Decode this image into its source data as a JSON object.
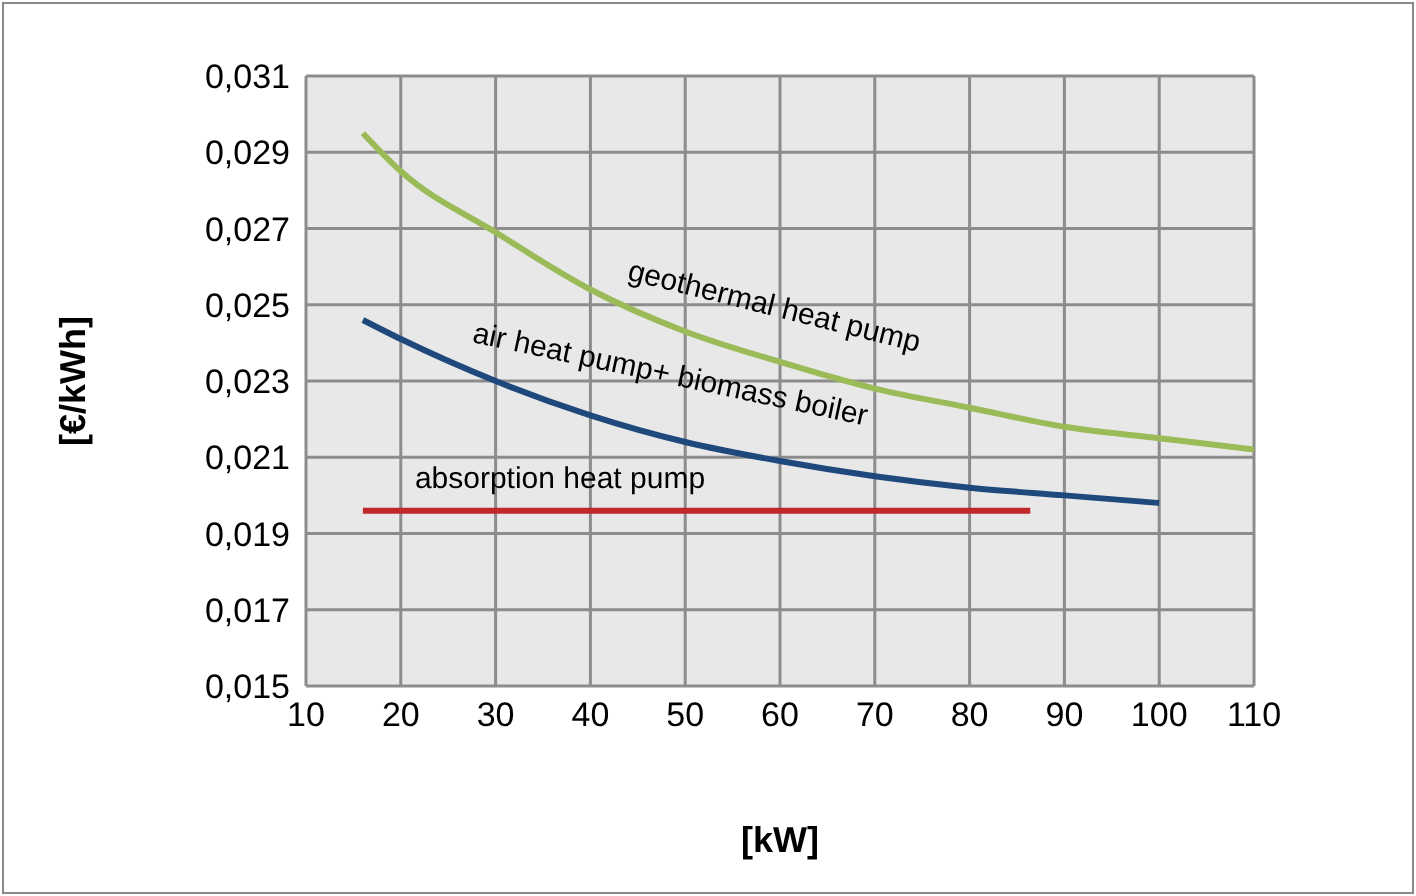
{
  "chart_data": {
    "type": "line",
    "xlabel": "[kW]",
    "ylabel": "[€/kWh]",
    "xlim": [
      10,
      110
    ],
    "xticks": [
      10,
      20,
      30,
      40,
      50,
      60,
      70,
      80,
      90,
      100,
      110
    ],
    "ylim": [
      0.015,
      0.031
    ],
    "yticks": [
      {
        "value": 0.015,
        "label": "0,015"
      },
      {
        "value": 0.017,
        "label": "0,017"
      },
      {
        "value": 0.019,
        "label": "0,019"
      },
      {
        "value": 0.021,
        "label": "0,021"
      },
      {
        "value": 0.023,
        "label": "0,023"
      },
      {
        "value": 0.025,
        "label": "0,025"
      },
      {
        "value": 0.027,
        "label": "0,027"
      },
      {
        "value": 0.029,
        "label": "0,029"
      },
      {
        "value": 0.031,
        "label": "0,031"
      }
    ],
    "grid": true,
    "marker": "none",
    "line_style": "solid",
    "series": [
      {
        "name": "geothermal heat pump",
        "color": "#9bbb59",
        "x": [
          16,
          20,
          30,
          40,
          50,
          60,
          70,
          80,
          90,
          100,
          110
        ],
        "values": [
          0.0295,
          0.0285,
          0.0269,
          0.0254,
          0.0243,
          0.0235,
          0.0228,
          0.0223,
          0.0218,
          0.0215,
          0.0212
        ]
      },
      {
        "name": "air heat pump+ biomass boiler",
        "color": "#1f497d",
        "x": [
          16,
          20,
          30,
          40,
          50,
          60,
          70,
          80,
          90,
          100
        ],
        "values": [
          0.0246,
          0.0241,
          0.023,
          0.0221,
          0.0214,
          0.0209,
          0.0205,
          0.0202,
          0.02,
          0.0198
        ]
      },
      {
        "name": "absorption heat pump",
        "color": "#c0282d",
        "x": [
          16,
          86.4
        ],
        "values": [
          0.0196,
          0.0196
        ]
      }
    ]
  }
}
